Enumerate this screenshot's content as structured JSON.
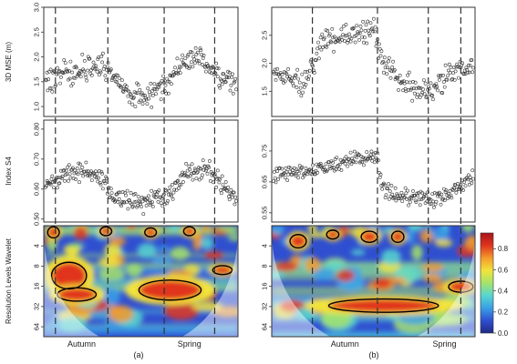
{
  "chart_data": [
    {
      "panel": "a",
      "caption": "(a)",
      "seasons": [
        "Autumn",
        "Spring"
      ],
      "season_boundaries": [
        0.06,
        0.33,
        0.62,
        0.88
      ],
      "rows": [
        {
          "type": "scatter",
          "ylabel": "3D MSE (m)",
          "yticks": [
            "1.0",
            "1.5",
            "2.0",
            "2.5",
            "3.0"
          ],
          "ylim": [
            0.8,
            3.0
          ],
          "trend": [
            [
              0.0,
              1.5
            ],
            [
              0.1,
              1.7
            ],
            [
              0.2,
              1.75
            ],
            [
              0.3,
              1.85
            ],
            [
              0.4,
              1.4
            ],
            [
              0.5,
              1.2
            ],
            [
              0.6,
              1.3
            ],
            [
              0.7,
              1.85
            ],
            [
              0.8,
              2.0
            ],
            [
              0.9,
              1.6
            ],
            [
              1.0,
              1.5
            ]
          ],
          "spread": 0.35
        },
        {
          "type": "scatter",
          "ylabel": "Index S4",
          "yticks": [
            "0.50",
            "0.60",
            "0.70",
            "0.80"
          ],
          "ylim": [
            0.49,
            0.83
          ],
          "trend": [
            [
              0.0,
              0.62
            ],
            [
              0.15,
              0.66
            ],
            [
              0.3,
              0.64
            ],
            [
              0.35,
              0.57
            ],
            [
              0.5,
              0.555
            ],
            [
              0.65,
              0.58
            ],
            [
              0.75,
              0.66
            ],
            [
              0.85,
              0.665
            ],
            [
              0.95,
              0.6
            ],
            [
              1.0,
              0.58
            ]
          ],
          "spread": 0.045
        },
        {
          "type": "heatmap",
          "ylabel": "Resolution Levels Wavelet",
          "yticks": [
            "4",
            "8",
            "16",
            "32",
            "64"
          ]
        }
      ]
    },
    {
      "panel": "b",
      "caption": "(b)",
      "seasons": [
        "Autumn",
        "Spring"
      ],
      "season_boundaries": [
        0.2,
        0.52,
        0.77,
        0.93
      ],
      "rows": [
        {
          "type": "scatter",
          "ylabel": "",
          "yticks": [
            "1.5",
            "2.0",
            "2.5"
          ],
          "ylim": [
            1.05,
            3.0
          ],
          "trend": [
            [
              0.0,
              1.85
            ],
            [
              0.15,
              1.6
            ],
            [
              0.25,
              2.4
            ],
            [
              0.4,
              2.5
            ],
            [
              0.5,
              2.6
            ],
            [
              0.55,
              2.0
            ],
            [
              0.7,
              1.5
            ],
            [
              0.8,
              1.55
            ],
            [
              0.9,
              1.9
            ],
            [
              1.0,
              2.0
            ]
          ],
          "spread": 0.3
        },
        {
          "type": "scatter",
          "ylabel": "",
          "yticks": [
            "0.55",
            "0.65",
            "0.75"
          ],
          "ylim": [
            0.52,
            0.85
          ],
          "trend": [
            [
              0.0,
              0.67
            ],
            [
              0.2,
              0.69
            ],
            [
              0.4,
              0.72
            ],
            [
              0.52,
              0.73
            ],
            [
              0.55,
              0.62
            ],
            [
              0.7,
              0.6
            ],
            [
              0.85,
              0.6
            ],
            [
              0.95,
              0.65
            ],
            [
              1.0,
              0.67
            ]
          ],
          "spread": 0.04
        },
        {
          "type": "heatmap",
          "ylabel": "",
          "yticks": [
            "4",
            "8",
            "16",
            "32",
            "64"
          ]
        }
      ]
    }
  ],
  "colorbar": {
    "ticks": [
      "0.0",
      "0.2",
      "0.4",
      "0.6",
      "0.8"
    ],
    "range": [
      0.0,
      0.95
    ],
    "colors": [
      "#1f2a86",
      "#2f4fd0",
      "#39a0e6",
      "#58d6cf",
      "#a6e36a",
      "#f2e43a",
      "#f59a2a",
      "#e0341e",
      "#a8141a"
    ]
  }
}
